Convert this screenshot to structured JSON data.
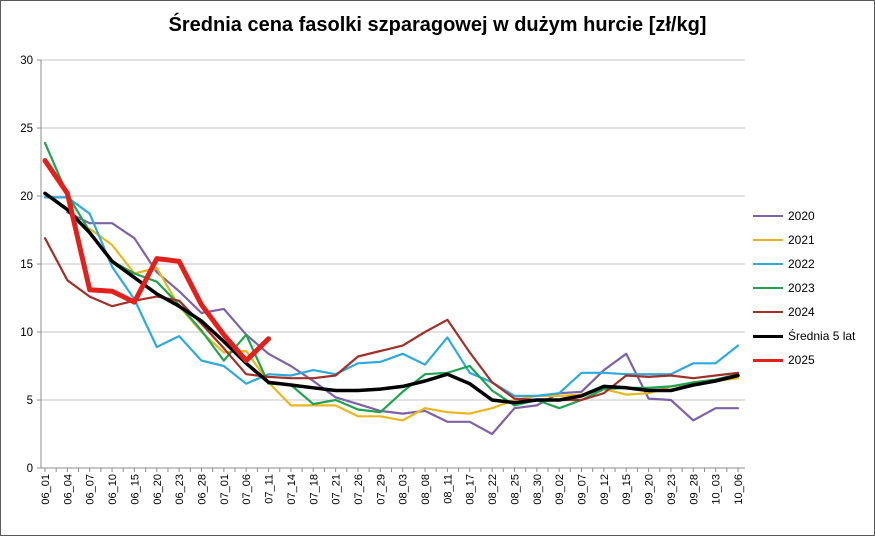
{
  "chart_data": {
    "type": "line",
    "title": "Średnia cena fasolki szparagowej w dużym hurcie [zł/kg]",
    "xlabel": "",
    "ylabel": "",
    "ylim": [
      0,
      30
    ],
    "y_ticks": [
      0,
      5,
      10,
      15,
      20,
      25,
      30
    ],
    "grid": "horizontal",
    "legend_position": "right",
    "categories": [
      "06_01",
      "06_04",
      "06_07",
      "06_10",
      "06_15",
      "06_20",
      "06_23",
      "06_28",
      "07_01",
      "07_06",
      "07_11",
      "07_14",
      "07_18",
      "07_21",
      "07_26",
      "07_29",
      "08_03",
      "08_08",
      "08_11",
      "08_17",
      "08_22",
      "08_25",
      "08_30",
      "09_02",
      "09_07",
      "09_12",
      "09_15",
      "09_20",
      "09_23",
      "09_28",
      "10_03",
      "10_06"
    ],
    "series": [
      {
        "name": "2020",
        "color": "#7D63A5",
        "width": 2.2,
        "values": [
          null,
          18.8,
          18.0,
          18.0,
          16.9,
          14.4,
          13.0,
          11.4,
          11.7,
          9.8,
          8.4,
          7.5,
          6.4,
          5.2,
          4.7,
          4.2,
          4.0,
          4.2,
          3.4,
          3.4,
          2.5,
          4.4,
          4.6,
          5.5,
          5.6,
          7.2,
          8.4,
          5.1,
          5.0,
          3.5,
          4.4,
          4.4
        ]
      },
      {
        "name": "2021",
        "color": "#E8B720",
        "width": 2.2,
        "values": [
          null,
          null,
          17.6,
          16.4,
          14.3,
          14.7,
          11.9,
          10.0,
          8.5,
          8.6,
          6.3,
          4.6,
          4.6,
          4.6,
          3.8,
          3.8,
          3.5,
          4.4,
          4.1,
          4.0,
          4.4,
          5.0,
          5.3,
          5.3,
          5.4,
          5.8,
          5.4,
          5.5,
          6.0,
          6.2,
          6.4,
          6.6
        ]
      },
      {
        "name": "2022",
        "color": "#2FA9DC",
        "width": 2.2,
        "values": [
          19.9,
          19.9,
          18.7,
          14.8,
          12.4,
          8.9,
          9.7,
          7.9,
          7.5,
          6.2,
          6.9,
          6.8,
          7.2,
          6.9,
          7.7,
          7.8,
          8.4,
          7.6,
          9.6,
          7.0,
          6.3,
          5.3,
          5.3,
          5.5,
          7.0,
          7.0,
          6.9,
          6.9,
          6.9,
          7.7,
          7.7,
          9.0
        ]
      },
      {
        "name": "2023",
        "color": "#1FA34F",
        "width": 2.2,
        "values": [
          23.9,
          20.1,
          17.4,
          15.2,
          14.3,
          13.7,
          12.0,
          10.1,
          7.9,
          9.8,
          6.2,
          6.1,
          4.7,
          5.0,
          4.3,
          4.1,
          5.6,
          6.9,
          7.0,
          7.5,
          5.7,
          4.6,
          5.0,
          4.4,
          5.0,
          5.8,
          5.9,
          5.9,
          6.0,
          6.3,
          6.5,
          6.9
        ]
      },
      {
        "name": "2024",
        "color": "#A0302A",
        "width": 2.2,
        "values": [
          16.9,
          13.8,
          12.6,
          11.9,
          12.3,
          12.6,
          12.3,
          10.6,
          8.8,
          6.9,
          6.7,
          6.6,
          6.6,
          6.8,
          8.2,
          8.6,
          9.0,
          10.0,
          10.9,
          8.5,
          6.3,
          5.1,
          5.0,
          5.0,
          5.0,
          5.5,
          6.8,
          6.7,
          6.8,
          6.6,
          6.8,
          7.0
        ]
      },
      {
        "name": "Średnia 5 lat",
        "color": "#000000",
        "width": 3.5,
        "values": [
          20.2,
          19.0,
          17.3,
          15.2,
          14.0,
          12.8,
          11.9,
          10.8,
          9.3,
          7.7,
          6.3,
          6.1,
          5.9,
          5.7,
          5.7,
          5.8,
          6.0,
          6.4,
          6.9,
          6.2,
          5.0,
          4.8,
          5.0,
          5.0,
          5.3,
          6.0,
          5.9,
          5.7,
          5.7,
          6.1,
          6.4,
          6.8
        ]
      },
      {
        "name": "2025",
        "color": "#E3201B",
        "width": 5,
        "values": [
          22.6,
          20.2,
          13.1,
          13.0,
          12.2,
          15.4,
          15.2,
          12.0,
          9.8,
          7.9,
          9.5,
          null,
          null,
          null,
          null,
          null,
          null,
          null,
          null,
          null,
          null,
          null,
          null,
          null,
          null,
          null,
          null,
          null,
          null,
          null,
          null,
          null
        ]
      }
    ],
    "colors": {
      "gridline": "#c6c6c6",
      "axis": "#8c8c8c",
      "tick_label": "#000000",
      "background": "#ffffff"
    }
  }
}
